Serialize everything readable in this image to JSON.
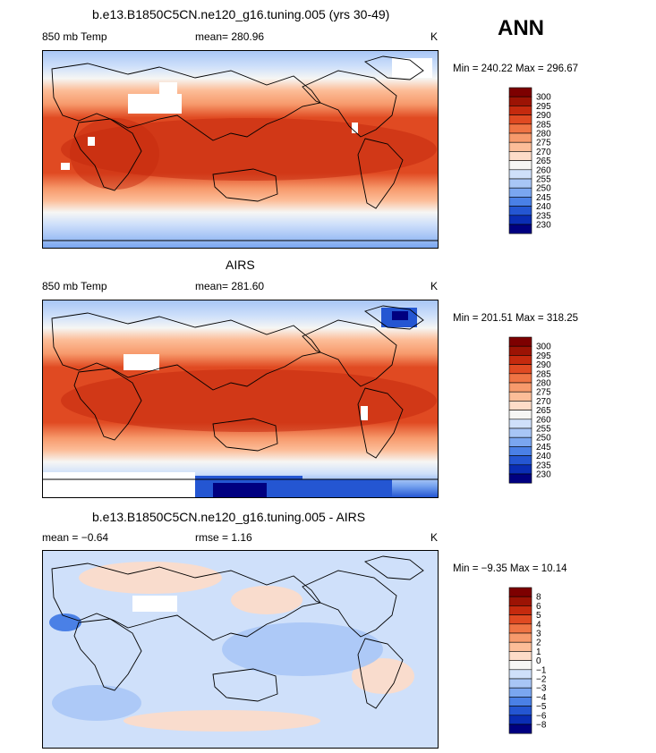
{
  "season": "ANN",
  "colors": {
    "temp_scale": [
      "#000080",
      "#0a2db4",
      "#2456d2",
      "#4a80e6",
      "#7aa6f0",
      "#a8c6f6",
      "#cfe0fa",
      "#f6f6f4",
      "#fddcc8",
      "#fcbd98",
      "#f79a6c",
      "#ef7444",
      "#e04a22",
      "#c52a0e",
      "#9c1304",
      "#7d0000"
    ],
    "diff_scale": [
      "#000080",
      "#0a2db4",
      "#2456d2",
      "#4a80e6",
      "#7aa6f0",
      "#a8c6f6",
      "#cfe0fa",
      "#f6f6f4",
      "#fddcc8",
      "#fcbd98",
      "#f79a6c",
      "#ef7444",
      "#e04a22",
      "#c52a0e",
      "#9c1304",
      "#7d0000"
    ],
    "land_missing": "#ffffff",
    "coastline": "#000000"
  },
  "panels": [
    {
      "title": "b.e13.B1850C5CN.ne120_g16.tuning.005 (yrs 30-49)",
      "variable": "850 mb Temp",
      "stat_text": "mean= 280.96",
      "units": "K",
      "minmax": "Min = 240.22 Max = 296.67"
    },
    {
      "title": "AIRS",
      "variable": "850 mb Temp",
      "stat_text": "mean= 281.60",
      "units": "K",
      "minmax": "Min = 201.51 Max = 318.25"
    },
    {
      "title": "b.e13.B1850C5CN.ne120_g16.tuning.005 - AIRS",
      "variable": "mean =  −0.64",
      "stat_text": "rmse =   1.16",
      "units": "K",
      "minmax": "Min =  −9.35 Max =  10.14"
    }
  ],
  "chart_data": [
    {
      "type": "heatmap",
      "title": "b.e13.B1850C5CN.ne120_g16.tuning.005 (yrs 30-49)",
      "field": "850 mb Temp",
      "units": "K",
      "mean": 280.96,
      "min": 240.22,
      "max": 296.67,
      "colorbar_levels": [
        "300",
        "295",
        "290",
        "285",
        "280",
        "275",
        "270",
        "265",
        "260",
        "255",
        "250",
        "245",
        "240",
        "235",
        "230"
      ]
    },
    {
      "type": "heatmap",
      "title": "AIRS",
      "field": "850 mb Temp",
      "units": "K",
      "mean": 281.6,
      "min": 201.51,
      "max": 318.25,
      "colorbar_levels": [
        "300",
        "295",
        "290",
        "285",
        "280",
        "275",
        "270",
        "265",
        "260",
        "255",
        "250",
        "245",
        "240",
        "235",
        "230"
      ]
    },
    {
      "type": "heatmap",
      "title": "b.e13.B1850C5CN.ne120_g16.tuning.005 - AIRS",
      "units": "K",
      "mean": -0.64,
      "rmse": 1.16,
      "min": -9.35,
      "max": 10.14,
      "colorbar_levels": [
        "8",
        "6",
        "5",
        "4",
        "3",
        "2",
        "1",
        "0",
        "−1",
        "−2",
        "−3",
        "−4",
        "−5",
        "−6",
        "−8"
      ]
    }
  ]
}
